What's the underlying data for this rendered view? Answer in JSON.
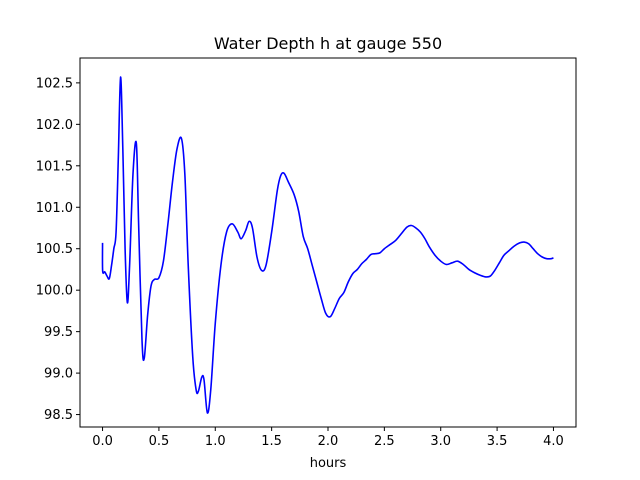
{
  "chart_data": {
    "type": "line",
    "title": "Water Depth h at gauge 550",
    "xlabel": "hours",
    "ylabel": "",
    "xlim": [
      -0.2,
      4.2
    ],
    "ylim": [
      98.35,
      102.8
    ],
    "xticks": [
      0.0,
      0.5,
      1.0,
      1.5,
      2.0,
      2.5,
      3.0,
      3.5,
      4.0
    ],
    "xtick_labels": [
      "0.0",
      "0.5",
      "1.0",
      "1.5",
      "2.0",
      "2.5",
      "3.0",
      "3.5",
      "4.0"
    ],
    "yticks": [
      98.5,
      99.0,
      99.5,
      100.0,
      100.5,
      101.0,
      101.5,
      102.0,
      102.5
    ],
    "ytick_labels": [
      "98.5",
      "99.0",
      "99.5",
      "100.0",
      "100.5",
      "101.0",
      "101.5",
      "102.0",
      "102.5"
    ],
    "grid": false,
    "series": [
      {
        "color": "#0000ff",
        "points": [
          [
            0.0,
            100.57
          ],
          [
            0.001,
            100.23
          ],
          [
            0.02,
            100.22
          ],
          [
            0.04,
            100.17
          ],
          [
            0.06,
            100.14
          ],
          [
            0.08,
            100.3
          ],
          [
            0.1,
            100.5
          ],
          [
            0.12,
            100.7
          ],
          [
            0.14,
            101.6
          ],
          [
            0.16,
            102.57
          ],
          [
            0.18,
            101.7
          ],
          [
            0.2,
            100.5
          ],
          [
            0.22,
            99.85
          ],
          [
            0.24,
            100.3
          ],
          [
            0.27,
            101.4
          ],
          [
            0.3,
            101.77
          ],
          [
            0.32,
            100.8
          ],
          [
            0.35,
            99.4
          ],
          [
            0.37,
            99.18
          ],
          [
            0.4,
            99.7
          ],
          [
            0.43,
            100.05
          ],
          [
            0.46,
            100.13
          ],
          [
            0.5,
            100.15
          ],
          [
            0.54,
            100.35
          ],
          [
            0.58,
            100.8
          ],
          [
            0.62,
            101.3
          ],
          [
            0.66,
            101.7
          ],
          [
            0.7,
            101.83
          ],
          [
            0.73,
            101.4
          ],
          [
            0.76,
            100.3
          ],
          [
            0.8,
            99.2
          ],
          [
            0.83,
            98.8
          ],
          [
            0.85,
            98.78
          ],
          [
            0.88,
            98.95
          ],
          [
            0.9,
            98.92
          ],
          [
            0.93,
            98.52
          ],
          [
            0.96,
            98.8
          ],
          [
            1.0,
            99.6
          ],
          [
            1.05,
            100.3
          ],
          [
            1.1,
            100.7
          ],
          [
            1.15,
            100.8
          ],
          [
            1.2,
            100.7
          ],
          [
            1.23,
            100.62
          ],
          [
            1.27,
            100.72
          ],
          [
            1.3,
            100.83
          ],
          [
            1.33,
            100.75
          ],
          [
            1.37,
            100.4
          ],
          [
            1.41,
            100.24
          ],
          [
            1.45,
            100.3
          ],
          [
            1.5,
            100.7
          ],
          [
            1.55,
            101.2
          ],
          [
            1.58,
            101.38
          ],
          [
            1.61,
            101.41
          ],
          [
            1.65,
            101.3
          ],
          [
            1.7,
            101.15
          ],
          [
            1.74,
            100.95
          ],
          [
            1.78,
            100.65
          ],
          [
            1.82,
            100.5
          ],
          [
            1.86,
            100.3
          ],
          [
            1.9,
            100.1
          ],
          [
            1.94,
            99.9
          ],
          [
            1.98,
            99.72
          ],
          [
            2.02,
            99.68
          ],
          [
            2.06,
            99.78
          ],
          [
            2.1,
            99.9
          ],
          [
            2.14,
            99.97
          ],
          [
            2.18,
            100.1
          ],
          [
            2.22,
            100.2
          ],
          [
            2.26,
            100.25
          ],
          [
            2.3,
            100.32
          ],
          [
            2.34,
            100.37
          ],
          [
            2.38,
            100.43
          ],
          [
            2.42,
            100.44
          ],
          [
            2.46,
            100.45
          ],
          [
            2.5,
            100.5
          ],
          [
            2.55,
            100.55
          ],
          [
            2.6,
            100.6
          ],
          [
            2.65,
            100.68
          ],
          [
            2.7,
            100.76
          ],
          [
            2.74,
            100.78
          ],
          [
            2.78,
            100.75
          ],
          [
            2.82,
            100.7
          ],
          [
            2.86,
            100.62
          ],
          [
            2.9,
            100.52
          ],
          [
            2.95,
            100.42
          ],
          [
            3.0,
            100.35
          ],
          [
            3.05,
            100.31
          ],
          [
            3.1,
            100.33
          ],
          [
            3.15,
            100.35
          ],
          [
            3.2,
            100.31
          ],
          [
            3.25,
            100.25
          ],
          [
            3.3,
            100.21
          ],
          [
            3.35,
            100.18
          ],
          [
            3.4,
            100.16
          ],
          [
            3.44,
            100.17
          ],
          [
            3.48,
            100.24
          ],
          [
            3.52,
            100.33
          ],
          [
            3.56,
            100.42
          ],
          [
            3.6,
            100.47
          ],
          [
            3.65,
            100.53
          ],
          [
            3.7,
            100.57
          ],
          [
            3.74,
            100.58
          ],
          [
            3.78,
            100.56
          ],
          [
            3.82,
            100.5
          ],
          [
            3.86,
            100.44
          ],
          [
            3.9,
            100.4
          ],
          [
            3.94,
            100.38
          ],
          [
            3.98,
            100.38
          ],
          [
            4.0,
            100.39
          ]
        ]
      }
    ]
  }
}
